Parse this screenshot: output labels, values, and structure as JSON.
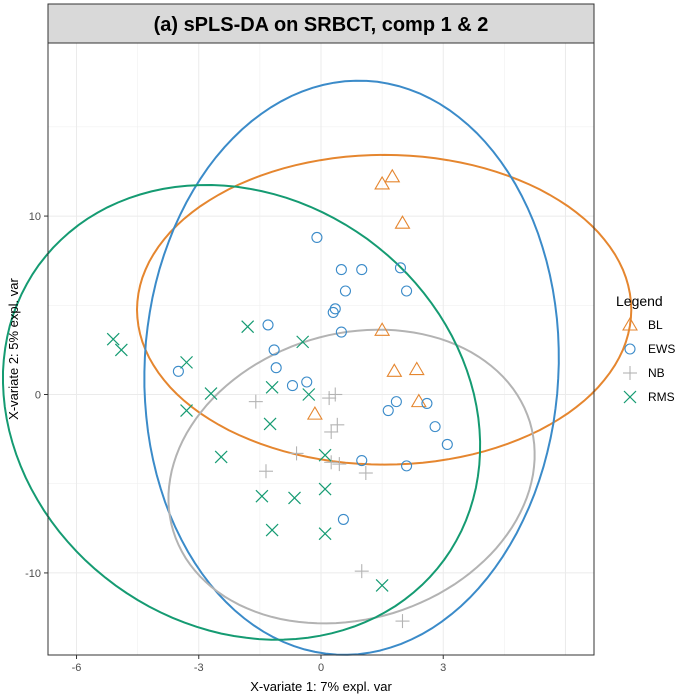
{
  "chart_data": {
    "type": "scatter",
    "title": "(a) sPLS-DA on SRBCT, comp 1 & 2",
    "xlabel": "X-variate 1: 7% expl. var",
    "ylabel": "X-variate 2: 5% expl. var",
    "xlim": [
      -6.7,
      6.7
    ],
    "ylim": [
      -14.6,
      19.7
    ],
    "xticks": [
      -6,
      -3,
      0,
      3
    ],
    "xtick_labels": [
      "-6",
      "-3",
      "0",
      "3"
    ],
    "yticks": [
      -10,
      0,
      10
    ],
    "ytick_labels": [
      "-10",
      "0",
      "10"
    ],
    "grid": true,
    "legend": {
      "title": "Legend",
      "position": "right"
    },
    "series": [
      {
        "name": "BL",
        "marker": "triangle",
        "color": "#e5862f",
        "points": [
          [
            1.5,
            11.8
          ],
          [
            1.75,
            12.2
          ],
          [
            2.0,
            9.6
          ],
          [
            1.5,
            3.6
          ],
          [
            1.8,
            1.3
          ],
          [
            2.35,
            1.4
          ],
          [
            2.4,
            -0.4
          ],
          [
            -0.15,
            -1.1
          ]
        ],
        "ellipse": {
          "cx": 1.55,
          "cy": 4.75,
          "rx": 3.8,
          "ry": 13.85,
          "angle": -90
        }
      },
      {
        "name": "EWS",
        "marker": "circle",
        "color": "#3b8bc9",
        "points": [
          [
            -0.1,
            8.8
          ],
          [
            0.5,
            7.0
          ],
          [
            1.0,
            7.0
          ],
          [
            1.95,
            7.1
          ],
          [
            0.6,
            5.8
          ],
          [
            2.1,
            5.8
          ],
          [
            0.35,
            4.8
          ],
          [
            0.3,
            4.6
          ],
          [
            0.5,
            3.5
          ],
          [
            -1.3,
            3.9
          ],
          [
            -1.15,
            2.5
          ],
          [
            -1.1,
            1.5
          ],
          [
            -3.5,
            1.3
          ],
          [
            -0.35,
            0.7
          ],
          [
            -0.7,
            0.5
          ],
          [
            1.85,
            -0.4
          ],
          [
            1.65,
            -0.9
          ],
          [
            2.6,
            -0.5
          ],
          [
            2.8,
            -1.8
          ],
          [
            3.1,
            -2.8
          ],
          [
            1.0,
            -3.7
          ],
          [
            2.1,
            -4.0
          ],
          [
            0.55,
            -7.0
          ]
        ],
        "ellipse": {
          "cx": 0.75,
          "cy": 1.5,
          "rx": 7.05,
          "ry": 11.6,
          "angle": -87
        }
      },
      {
        "name": "NB",
        "marker": "plus",
        "color": "#b3b3b3",
        "points": [
          [
            0.2,
            -0.2
          ],
          [
            0.35,
            0.0
          ],
          [
            -1.6,
            -0.4
          ],
          [
            0.4,
            -1.7
          ],
          [
            0.25,
            -2.1
          ],
          [
            -0.6,
            -3.3
          ],
          [
            0.25,
            -3.8
          ],
          [
            0.45,
            -3.9
          ],
          [
            -1.35,
            -4.3
          ],
          [
            1.1,
            -4.4
          ],
          [
            1.0,
            -9.9
          ],
          [
            2.0,
            -12.7
          ]
        ],
        "ellipse": {
          "cx": 0.75,
          "cy": -4.6,
          "rx": 3.5,
          "ry": 10.45,
          "angle": -107
        }
      },
      {
        "name": "RMS",
        "marker": "x",
        "color": "#159b72",
        "points": [
          [
            -5.1,
            3.1
          ],
          [
            -4.9,
            2.5
          ],
          [
            -3.3,
            1.8
          ],
          [
            -1.8,
            3.8
          ],
          [
            -0.45,
            2.95
          ],
          [
            -1.2,
            0.4
          ],
          [
            -0.3,
            0.0
          ],
          [
            -2.7,
            0.05
          ],
          [
            -3.3,
            -0.9
          ],
          [
            -1.25,
            -1.65
          ],
          [
            -2.45,
            -3.5
          ],
          [
            0.1,
            -3.4
          ],
          [
            -1.45,
            -5.7
          ],
          [
            -0.65,
            -5.8
          ],
          [
            0.1,
            -5.3
          ],
          [
            -1.2,
            -7.6
          ],
          [
            0.1,
            -7.8
          ],
          [
            1.5,
            -10.7
          ]
        ],
        "ellipse": {
          "cx": -1.95,
          "cy": -1.0,
          "rx": 6.15,
          "ry": 12.0,
          "angle": 36
        }
      }
    ]
  }
}
